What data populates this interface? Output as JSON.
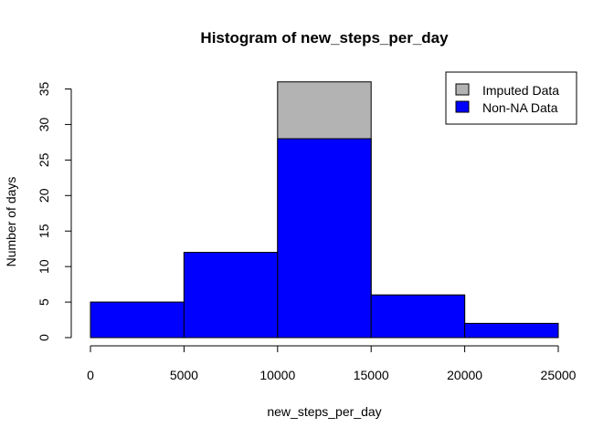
{
  "chart_data": {
    "type": "bar",
    "title": "Histogram of new_steps_per_day",
    "xlabel": "new_steps_per_day",
    "ylabel": "Number of days",
    "xlim": [
      0,
      25000
    ],
    "ylim": [
      0,
      35
    ],
    "x_ticks": [
      "0",
      "5000",
      "10000",
      "15000",
      "20000",
      "25000"
    ],
    "y_ticks": [
      "0",
      "5",
      "10",
      "15",
      "20",
      "25",
      "30",
      "35"
    ],
    "grid": false,
    "legend_position": "top-right",
    "bins": [
      {
        "range": [
          0,
          5000
        ],
        "value": 5
      },
      {
        "range": [
          5000,
          10000
        ],
        "value": 12
      },
      {
        "range": [
          10000,
          15000
        ],
        "value": 28
      },
      {
        "range": [
          15000,
          20000
        ],
        "value": 6
      },
      {
        "range": [
          20000,
          25000
        ],
        "value": 2
      }
    ],
    "series": [
      {
        "name": "Imputed Data",
        "color": "#b3b3b3",
        "values": [
          5,
          12,
          36,
          6,
          2
        ]
      },
      {
        "name": "Non-NA Data",
        "color": "#0000ff",
        "values": [
          5,
          12,
          28,
          6,
          2
        ]
      }
    ]
  }
}
